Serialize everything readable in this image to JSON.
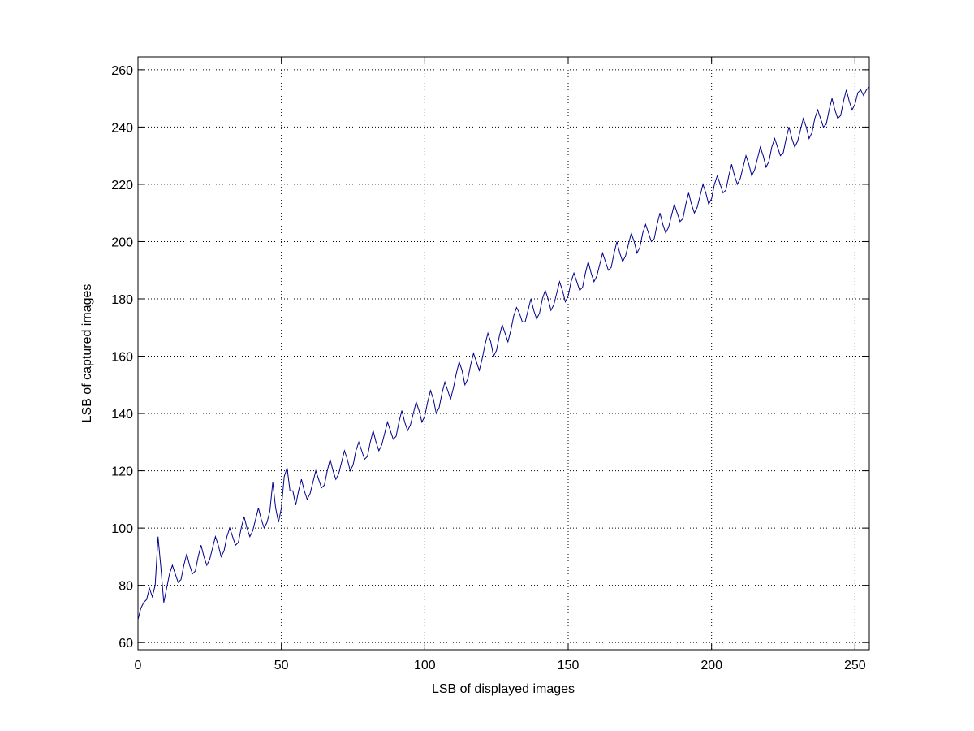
{
  "chart_data": {
    "type": "line",
    "xlabel": "LSB of displayed images",
    "ylabel": "LSB of captured images",
    "color": "#00008b",
    "grid": true,
    "xlim": [
      0,
      255
    ],
    "xticks": [
      0,
      50,
      100,
      150,
      200,
      250
    ],
    "ylim": [
      57.5,
      264.5
    ],
    "yticks": [
      60,
      80,
      100,
      120,
      140,
      160,
      180,
      200,
      220,
      240,
      260
    ],
    "x": [
      0,
      1,
      2,
      3,
      4,
      5,
      6,
      7,
      8,
      9,
      10,
      11,
      12,
      13,
      14,
      15,
      16,
      17,
      18,
      19,
      20,
      21,
      22,
      23,
      24,
      25,
      26,
      27,
      28,
      29,
      30,
      31,
      32,
      33,
      34,
      35,
      36,
      37,
      38,
      39,
      40,
      41,
      42,
      43,
      44,
      45,
      46,
      47,
      48,
      49,
      50,
      51,
      52,
      53,
      54,
      55,
      56,
      57,
      58,
      59,
      60,
      61,
      62,
      63,
      64,
      65,
      66,
      67,
      68,
      69,
      70,
      71,
      72,
      73,
      74,
      75,
      76,
      77,
      78,
      79,
      80,
      81,
      82,
      83,
      84,
      85,
      86,
      87,
      88,
      89,
      90,
      91,
      92,
      93,
      94,
      95,
      96,
      97,
      98,
      99,
      100,
      101,
      102,
      103,
      104,
      105,
      106,
      107,
      108,
      109,
      110,
      111,
      112,
      113,
      114,
      115,
      116,
      117,
      118,
      119,
      120,
      121,
      122,
      123,
      124,
      125,
      126,
      127,
      128,
      129,
      130,
      131,
      132,
      133,
      134,
      135,
      136,
      137,
      138,
      139,
      140,
      141,
      142,
      143,
      144,
      145,
      146,
      147,
      148,
      149,
      150,
      151,
      152,
      153,
      154,
      155,
      156,
      157,
      158,
      159,
      160,
      161,
      162,
      163,
      164,
      165,
      166,
      167,
      168,
      169,
      170,
      171,
      172,
      173,
      174,
      175,
      176,
      177,
      178,
      179,
      180,
      181,
      182,
      183,
      184,
      185,
      186,
      187,
      188,
      189,
      190,
      191,
      192,
      193,
      194,
      195,
      196,
      197,
      198,
      199,
      200,
      201,
      202,
      203,
      204,
      205,
      206,
      207,
      208,
      209,
      210,
      211,
      212,
      213,
      214,
      215,
      216,
      217,
      218,
      219,
      220,
      221,
      222,
      223,
      224,
      225,
      226,
      227,
      228,
      229,
      230,
      231,
      232,
      233,
      234,
      235,
      236,
      237,
      238,
      239,
      240,
      241,
      242,
      243,
      244,
      245,
      246,
      247,
      248,
      249,
      250,
      251,
      252,
      253,
      254,
      255
    ],
    "values": [
      68,
      72,
      74,
      75,
      79,
      76,
      80,
      97,
      86,
      74,
      79,
      84,
      87,
      84,
      81,
      82,
      87,
      91,
      87,
      84,
      85,
      90,
      94,
      90,
      87,
      89,
      93,
      97,
      94,
      90,
      92,
      97,
      100,
      97,
      94,
      95,
      100,
      104,
      100,
      97,
      99,
      103,
      107,
      103,
      100,
      102,
      106,
      116,
      107,
      102,
      107,
      118,
      121,
      113,
      113,
      108,
      113,
      117,
      113,
      110,
      112,
      116,
      120,
      117,
      114,
      115,
      120,
      124,
      120,
      117,
      119,
      123,
      127,
      124,
      120,
      122,
      127,
      130,
      127,
      124,
      125,
      130,
      134,
      130,
      127,
      129,
      133,
      137,
      134,
      131,
      132,
      137,
      141,
      137,
      134,
      136,
      140,
      144,
      141,
      137,
      139,
      144,
      148,
      145,
      140,
      142,
      147,
      151,
      148,
      145,
      149,
      154,
      158,
      155,
      150,
      152,
      157,
      161,
      158,
      155,
      159,
      164,
      168,
      165,
      160,
      162,
      167,
      171,
      168,
      165,
      169,
      174,
      177,
      175,
      172,
      172,
      176,
      180,
      176,
      173,
      175,
      180,
      183,
      180,
      176,
      178,
      182,
      186,
      183,
      179,
      181,
      186,
      189,
      186,
      183,
      184,
      189,
      193,
      189,
      186,
      188,
      192,
      196,
      193,
      190,
      191,
      196,
      200,
      196,
      193,
      195,
      199,
      203,
      200,
      196,
      198,
      203,
      206,
      203,
      200,
      201,
      206,
      210,
      206,
      203,
      205,
      209,
      213,
      210,
      207,
      208,
      213,
      217,
      213,
      210,
      212,
      216,
      220,
      217,
      213,
      215,
      220,
      223,
      220,
      217,
      218,
      223,
      227,
      223,
      220,
      222,
      226,
      230,
      227,
      223,
      225,
      229,
      233,
      230,
      226,
      228,
      233,
      236,
      233,
      230,
      231,
      236,
      240,
      236,
      233,
      235,
      239,
      243,
      240,
      236,
      238,
      243,
      246,
      243,
      240,
      241,
      246,
      250,
      246,
      243,
      244,
      249,
      253,
      249,
      246,
      248,
      252,
      253,
      251,
      253,
      254
    ]
  }
}
